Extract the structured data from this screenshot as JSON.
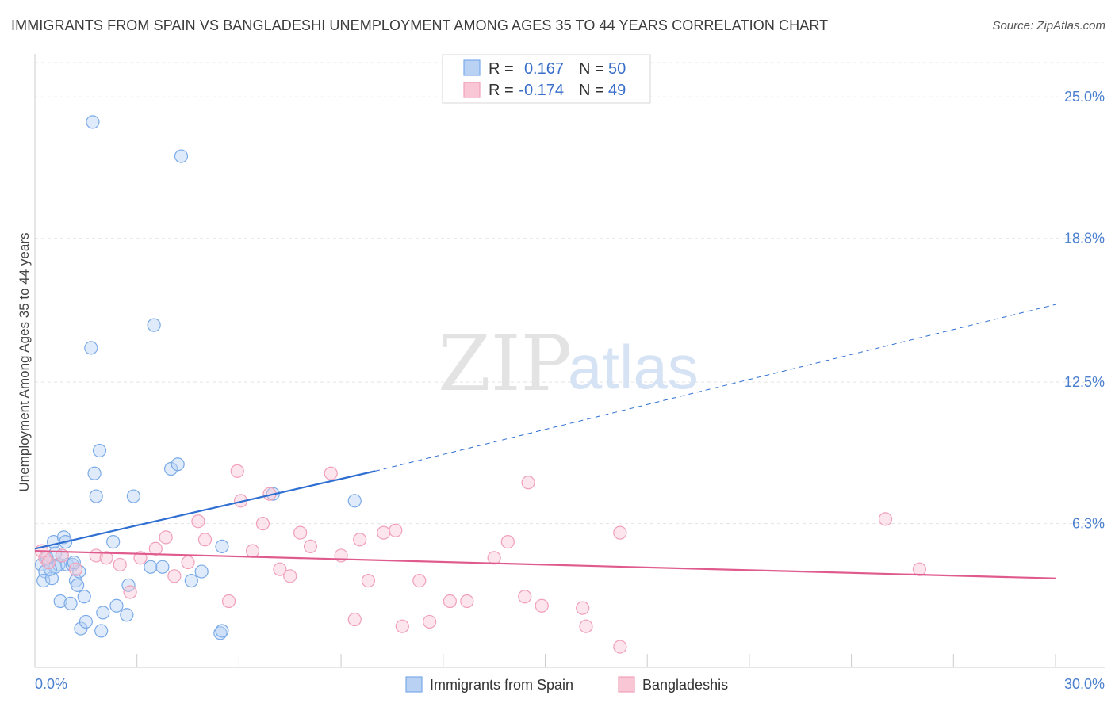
{
  "header": {
    "title": "IMMIGRANTS FROM SPAIN VS BANGLADESHI UNEMPLOYMENT AMONG AGES 35 TO 44 YEARS CORRELATION CHART",
    "source": "Source: ZipAtlas.com"
  },
  "watermark": {
    "zip": "ZIP",
    "atlas": "atlas"
  },
  "legend_top": [
    {
      "r_label": "R =",
      "r_value": "0.167",
      "n_label": "N =",
      "n_value": "50"
    },
    {
      "r_label": "R =",
      "r_value": "-0.174",
      "n_label": "N =",
      "n_value": "49"
    }
  ],
  "chart_data": {
    "type": "scatter",
    "title": "IMMIGRANTS FROM SPAIN VS BANGLADESHI UNEMPLOYMENT AMONG AGES 35 TO 44 YEARS CORRELATION CHART",
    "xlabel": "",
    "ylabel": "Unemployment Among Ages 35 to 44 years",
    "xlim": [
      0,
      30
    ],
    "ylim": [
      0,
      26.5
    ],
    "x_tick_labels": [
      "0.0%",
      "30.0%"
    ],
    "y_ticks": [
      6.3,
      12.5,
      18.8,
      25.0
    ],
    "y_tick_labels": [
      "6.3%",
      "12.5%",
      "18.8%",
      "25.0%"
    ],
    "grid": true,
    "legend_position": "bottom",
    "series": [
      {
        "name": "Immigrants from Spain",
        "color": "#7aaae8",
        "fill": "#b9d2f3",
        "line_color": "#2f6fd1",
        "R": 0.167,
        "N": 50,
        "trend": {
          "x0": 0.0,
          "y0": 5.2,
          "x1": 10.0,
          "y1": 8.6,
          "dash_to_x": 30.0,
          "dash_to_y": 15.9
        },
        "points": [
          [
            0.2,
            4.5
          ],
          [
            0.3,
            4.2
          ],
          [
            0.25,
            3.8
          ],
          [
            0.4,
            4.6
          ],
          [
            0.5,
            3.9
          ],
          [
            0.55,
            5.5
          ],
          [
            0.6,
            5.0
          ],
          [
            0.6,
            4.4
          ],
          [
            0.7,
            4.5
          ],
          [
            0.75,
            2.9
          ],
          [
            0.85,
            5.7
          ],
          [
            0.9,
            5.5
          ],
          [
            0.95,
            4.5
          ],
          [
            1.05,
            2.8
          ],
          [
            1.1,
            4.5
          ],
          [
            1.2,
            3.8
          ],
          [
            1.25,
            3.6
          ],
          [
            1.3,
            4.2
          ],
          [
            1.35,
            1.7
          ],
          [
            1.45,
            3.1
          ],
          [
            1.5,
            2.0
          ],
          [
            1.7,
            23.9
          ],
          [
            1.65,
            14.0
          ],
          [
            1.75,
            8.5
          ],
          [
            1.8,
            7.5
          ],
          [
            1.9,
            9.5
          ],
          [
            1.95,
            1.6
          ],
          [
            2.0,
            2.4
          ],
          [
            2.3,
            5.5
          ],
          [
            2.4,
            2.7
          ],
          [
            2.7,
            2.3
          ],
          [
            2.75,
            3.6
          ],
          [
            2.9,
            7.5
          ],
          [
            3.4,
            4.4
          ],
          [
            3.5,
            15.0
          ],
          [
            3.75,
            4.4
          ],
          [
            4.0,
            8.7
          ],
          [
            4.2,
            8.9
          ],
          [
            4.3,
            22.4
          ],
          [
            4.6,
            3.8
          ],
          [
            4.9,
            4.2
          ],
          [
            5.5,
            5.3
          ],
          [
            5.45,
            1.5
          ],
          [
            5.5,
            1.6
          ],
          [
            7.0,
            7.6
          ],
          [
            9.4,
            7.3
          ],
          [
            0.35,
            4.8
          ],
          [
            0.45,
            4.3
          ],
          [
            0.8,
            4.9
          ],
          [
            1.15,
            4.6
          ]
        ]
      },
      {
        "name": "Bangladeshis",
        "color": "#f0a0b9",
        "fill": "#f8c6d5",
        "line_color": "#e05b8d",
        "R": -0.174,
        "N": 49,
        "trend": {
          "x0": 0.0,
          "y0": 5.1,
          "x1": 30.0,
          "y1": 3.9
        },
        "points": [
          [
            0.2,
            5.1
          ],
          [
            0.3,
            4.8
          ],
          [
            0.4,
            4.6
          ],
          [
            0.8,
            4.9
          ],
          [
            1.2,
            4.3
          ],
          [
            1.8,
            4.9
          ],
          [
            2.1,
            4.8
          ],
          [
            2.5,
            4.5
          ],
          [
            2.8,
            3.3
          ],
          [
            3.1,
            4.8
          ],
          [
            3.55,
            5.2
          ],
          [
            3.85,
            5.7
          ],
          [
            4.1,
            4.0
          ],
          [
            4.5,
            4.6
          ],
          [
            4.8,
            6.4
          ],
          [
            5.0,
            5.6
          ],
          [
            5.7,
            2.9
          ],
          [
            5.95,
            8.6
          ],
          [
            6.05,
            7.3
          ],
          [
            6.4,
            5.1
          ],
          [
            6.7,
            6.3
          ],
          [
            6.9,
            7.6
          ],
          [
            7.2,
            4.3
          ],
          [
            7.5,
            4.0
          ],
          [
            7.8,
            5.9
          ],
          [
            8.1,
            5.3
          ],
          [
            8.7,
            8.5
          ],
          [
            9.0,
            4.9
          ],
          [
            9.4,
            2.1
          ],
          [
            9.55,
            5.6
          ],
          [
            9.8,
            3.8
          ],
          [
            10.25,
            5.9
          ],
          [
            10.6,
            6.0
          ],
          [
            10.8,
            1.8
          ],
          [
            11.3,
            3.8
          ],
          [
            11.6,
            2.0
          ],
          [
            12.2,
            2.9
          ],
          [
            12.7,
            2.9
          ],
          [
            13.5,
            4.8
          ],
          [
            13.9,
            5.5
          ],
          [
            14.5,
            8.1
          ],
          [
            14.4,
            3.1
          ],
          [
            14.9,
            2.7
          ],
          [
            16.1,
            2.6
          ],
          [
            16.2,
            1.8
          ],
          [
            17.2,
            5.9
          ],
          [
            17.2,
            0.9
          ],
          [
            25.0,
            6.5
          ],
          [
            26.0,
            4.3
          ]
        ]
      }
    ]
  },
  "bottom_legend": {
    "item1": "Immigrants from Spain",
    "item2": "Bangladeshis"
  },
  "x_axis_labels": {
    "left": "0.0%",
    "right": "30.0%"
  }
}
